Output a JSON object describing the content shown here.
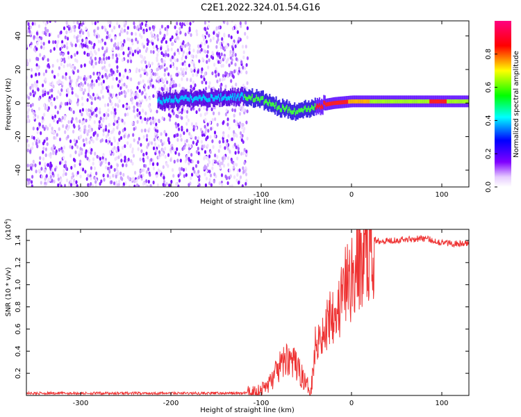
{
  "title": "C2E1.2022.324.01.54.G16",
  "chart_data": [
    {
      "type": "heatmap",
      "xlabel": "Height of straight line (km)",
      "ylabel": "Frequency (Hz)",
      "xlim": [
        -360,
        130
      ],
      "ylim": [
        -50,
        49
      ],
      "x_ticks": [
        -300,
        -200,
        -100,
        0,
        100
      ],
      "y_ticks": [
        -40,
        -20,
        0,
        20,
        40
      ],
      "colorbar": {
        "label": "Normalized spectral amplitude",
        "range": [
          0.0,
          1.0
        ],
        "ticks": [
          "0.0",
          "0.2",
          "0.4",
          "0.6",
          "0.8"
        ],
        "colormap": [
          "#ffffff",
          "#8000ff",
          "#0000ff",
          "#00ffff",
          "#00ff00",
          "#ffff00",
          "#ff0000",
          "#ff0080"
        ]
      },
      "ridge": [
        {
          "x": -210,
          "f": 2
        },
        {
          "x": -160,
          "f": 3
        },
        {
          "x": -120,
          "f": 4
        },
        {
          "x": -100,
          "f": 2
        },
        {
          "x": -80,
          "f": -3
        },
        {
          "x": -60,
          "f": -5
        },
        {
          "x": -40,
          "f": -2
        },
        {
          "x": -20,
          "f": 0
        },
        {
          "x": 0,
          "f": 1
        },
        {
          "x": 50,
          "f": 1
        },
        {
          "x": 100,
          "f": 1
        },
        {
          "x": 130,
          "f": 1
        }
      ],
      "noise_extent_x": [
        -360,
        -115
      ]
    },
    {
      "type": "line",
      "xlabel": "Height of straight line (km)",
      "ylabel": "SNR (10 * v/v)",
      "y_multiplier": "(x10",
      "y_multiplier_exp": "4",
      "y_multiplier_close": ")",
      "xlim": [
        -360,
        130
      ],
      "ylim": [
        0,
        1.5
      ],
      "x_ticks": [
        -300,
        -200,
        -100,
        0,
        100
      ],
      "y_ticks": [
        "0.2",
        "0.4",
        "0.6",
        "0.8",
        "1.0",
        "1.2",
        "1.4"
      ],
      "color": "#ee3333",
      "series": [
        {
          "x": [
            -360,
            -300,
            -200,
            -120,
            -100,
            -90,
            -80,
            -70,
            -60,
            -50,
            -45,
            -40,
            -35,
            -30,
            -25,
            -20,
            -15,
            -10,
            -5,
            0,
            5,
            10,
            15,
            20,
            25,
            30,
            40,
            60,
            80,
            100,
            120,
            130
          ],
          "y": [
            0.02,
            0.02,
            0.02,
            0.02,
            0.05,
            0.12,
            0.25,
            0.35,
            0.25,
            0.1,
            0.05,
            0.45,
            0.6,
            0.5,
            0.75,
            0.8,
            0.75,
            0.9,
            1.0,
            1.05,
            1.15,
            1.2,
            1.3,
            1.38,
            1.4,
            1.4,
            1.4,
            1.41,
            1.42,
            1.38,
            1.37,
            1.37
          ]
        }
      ]
    }
  ]
}
